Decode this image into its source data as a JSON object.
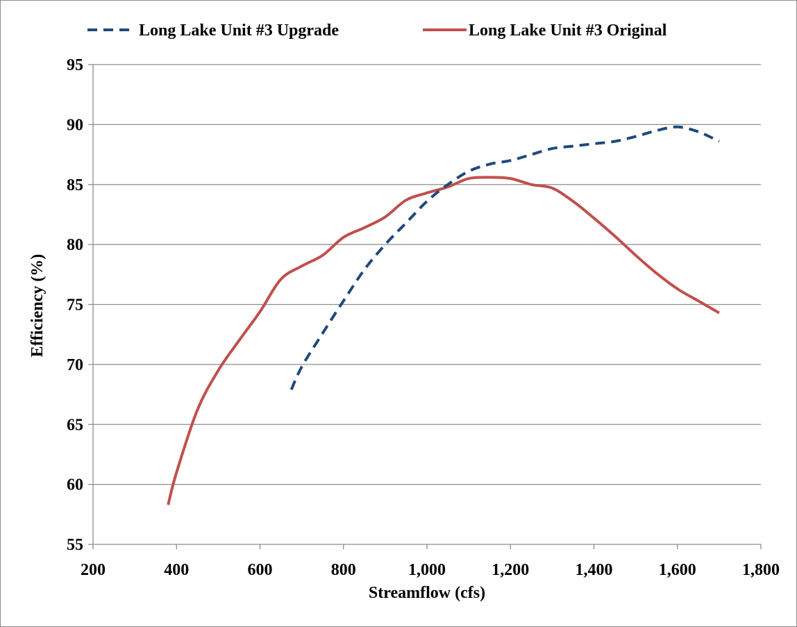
{
  "chart_data": {
    "type": "line",
    "xlabel": "Streamflow (cfs)",
    "ylabel": "Efficiency (%)",
    "xlim": [
      200,
      1800
    ],
    "ylim": [
      55,
      95
    ],
    "x_ticks": [
      200,
      400,
      600,
      800,
      1000,
      1200,
      1400,
      1600,
      1800
    ],
    "x_tick_labels": [
      "200",
      "400",
      "600",
      "800",
      "1,000",
      "1,200",
      "1,400",
      "1,600",
      "1,800"
    ],
    "y_ticks": [
      55,
      60,
      65,
      70,
      75,
      80,
      85,
      90,
      95
    ],
    "y_tick_labels": [
      "55",
      "60",
      "65",
      "70",
      "75",
      "80",
      "85",
      "90",
      "95"
    ],
    "grid": "horizontal",
    "legend_position": "top",
    "series": [
      {
        "name": "Long Lake Unit #3 Upgrade",
        "color": "#1f497d",
        "style": "dashed",
        "x": [
          675,
          700,
          750,
          800,
          850,
          900,
          950,
          1000,
          1050,
          1100,
          1150,
          1200,
          1250,
          1300,
          1350,
          1400,
          1450,
          1500,
          1550,
          1600,
          1650,
          1700
        ],
        "y": [
          67.9,
          69.8,
          72.6,
          75.3,
          77.9,
          80.0,
          81.8,
          83.6,
          85.0,
          86.1,
          86.7,
          87.0,
          87.5,
          88.0,
          88.2,
          88.4,
          88.6,
          89.0,
          89.5,
          89.8,
          89.4,
          88.6
        ]
      },
      {
        "name": "Long Lake Unit #3 Original",
        "color": "#c0504d",
        "style": "solid",
        "x": [
          380,
          400,
          450,
          500,
          550,
          600,
          650,
          700,
          750,
          800,
          850,
          900,
          950,
          1000,
          1050,
          1100,
          1150,
          1200,
          1250,
          1300,
          1350,
          1400,
          1450,
          1500,
          1550,
          1600,
          1650,
          1700
        ],
        "y": [
          58.3,
          61.0,
          66.2,
          69.5,
          72.0,
          74.4,
          77.1,
          78.2,
          79.1,
          80.6,
          81.4,
          82.3,
          83.7,
          84.3,
          84.8,
          85.5,
          85.6,
          85.5,
          85.0,
          84.7,
          83.6,
          82.2,
          80.7,
          79.1,
          77.6,
          76.3,
          75.3,
          74.3
        ]
      }
    ]
  }
}
